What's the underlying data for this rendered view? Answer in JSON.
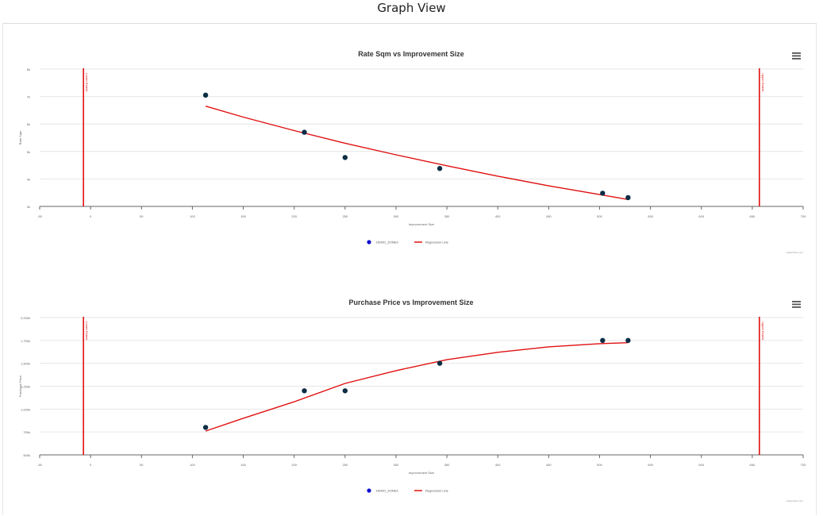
{
  "page": {
    "title": "Graph View"
  },
  "chart_data": [
    {
      "type": "scatter",
      "title": "Rate Sqm vs Improvement Size",
      "xlabel": "Improvement Size",
      "ylabel": "Rate Sqm",
      "xlim": [
        -50,
        700
      ],
      "xticks": [
        -50,
        0,
        50,
        100,
        150,
        200,
        250,
        300,
        350,
        400,
        450,
        500,
        550,
        600,
        650,
        700
      ],
      "ylim": [
        3000,
        8000
      ],
      "yticks": [
        3000,
        4000,
        5000,
        6000,
        7000,
        8000
      ],
      "ytick_labels": [
        "3k",
        "4k",
        "5k",
        "6k",
        "7k",
        "8k"
      ],
      "grid": true,
      "legend_position": "bottom-center",
      "series": [
        {
          "name": "DEMO_ZONE9",
          "type": "scatter",
          "color": "#0b2d45",
          "points": [
            [
              113,
              7050
            ],
            [
              210,
              5700
            ],
            [
              250,
              4780
            ],
            [
              343,
              4380
            ],
            [
              503,
              3480
            ],
            [
              528,
              3320
            ]
          ]
        },
        {
          "name": "Regression Line",
          "type": "line",
          "color": "#e01010",
          "points": [
            [
              113,
              6650
            ],
            [
              150,
              6250
            ],
            [
              200,
              5760
            ],
            [
              250,
              5300
            ],
            [
              300,
              4880
            ],
            [
              350,
              4480
            ],
            [
              400,
              4100
            ],
            [
              450,
              3750
            ],
            [
              500,
              3430
            ],
            [
              528,
              3250
            ]
          ]
        }
      ],
      "plot_lines": [
        {
          "x": -7,
          "label": "Lower Extent",
          "color": "#e01010"
        },
        {
          "x": 657,
          "label": "Upper Extent",
          "color": "#e01010"
        }
      ],
      "credits": "Highcharts.com"
    },
    {
      "type": "scatter",
      "title": "Purchase Price vs Improvement Size",
      "xlabel": "Improvement Size",
      "ylabel": "Purchase Price",
      "xlim": [
        -50,
        700
      ],
      "xticks": [
        -50,
        0,
        50,
        100,
        150,
        200,
        250,
        300,
        350,
        400,
        450,
        500,
        550,
        600,
        650,
        700
      ],
      "ylim": [
        500000,
        2000000
      ],
      "yticks": [
        500000,
        750000,
        1000000,
        1250000,
        1500000,
        1750000,
        2000000
      ],
      "ytick_labels": [
        "500k",
        "750k",
        "1,000k",
        "1,250k",
        "1,500k",
        "1,750k",
        "2,000k"
      ],
      "grid": true,
      "legend_position": "bottom-center",
      "series": [
        {
          "name": "DEMO_ZONE9",
          "type": "scatter",
          "color": "#0b2d45",
          "points": [
            [
              113,
              800000
            ],
            [
              210,
              1200000
            ],
            [
              250,
              1200000
            ],
            [
              343,
              1500000
            ],
            [
              503,
              1750000
            ],
            [
              528,
              1750000
            ]
          ]
        },
        {
          "name": "Regression Line",
          "type": "line",
          "color": "#e01010",
          "points": [
            [
              113,
              760000
            ],
            [
              150,
              900000
            ],
            [
              200,
              1080000
            ],
            [
              250,
              1280000
            ],
            [
              300,
              1420000
            ],
            [
              350,
              1540000
            ],
            [
              400,
              1620000
            ],
            [
              450,
              1680000
            ],
            [
              500,
              1715000
            ],
            [
              528,
              1725000
            ]
          ]
        }
      ],
      "plot_lines": [
        {
          "x": -7,
          "label": "Lower Extent",
          "color": "#e01010"
        },
        {
          "x": 657,
          "label": "Upper Extent",
          "color": "#e01010"
        }
      ],
      "credits": "Highcharts.com"
    }
  ],
  "legend_marker_color": "#1010d0",
  "icons": {
    "menu": "hamburger-menu-icon"
  }
}
